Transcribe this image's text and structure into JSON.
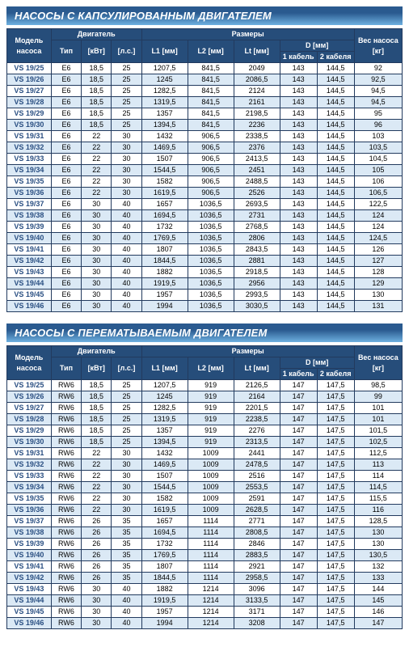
{
  "section1": {
    "title": "НАСОСЫ С КАПСУЛИРОВАННЫМ ДВИГАТЕЛЕМ",
    "headers": {
      "model": "Модель насоса",
      "engine": "Двигатель",
      "dims": "Размеры",
      "weight": "Вес насоса [кг]",
      "tip": "Тип",
      "kbt": "[кВт]",
      "ls": "[л.с.]",
      "l1": "L1 [мм]",
      "l2": "L2 [мм]",
      "lt": "Lt [мм]",
      "d": "D [мм]",
      "d1": "1 кабель",
      "d2": "2 кабеля"
    },
    "rows": [
      [
        "VS 19/25",
        "E6",
        "18,5",
        "25",
        "1207,5",
        "841,5",
        "2049",
        "143",
        "144,5",
        "92"
      ],
      [
        "VS 19/26",
        "E6",
        "18,5",
        "25",
        "1245",
        "841,5",
        "2086,5",
        "143",
        "144,5",
        "92,5"
      ],
      [
        "VS 19/27",
        "E6",
        "18,5",
        "25",
        "1282,5",
        "841,5",
        "2124",
        "143",
        "144,5",
        "94,5"
      ],
      [
        "VS 19/28",
        "E6",
        "18,5",
        "25",
        "1319,5",
        "841,5",
        "2161",
        "143",
        "144,5",
        "94,5"
      ],
      [
        "VS 19/29",
        "E6",
        "18,5",
        "25",
        "1357",
        "841,5",
        "2198,5",
        "143",
        "144,5",
        "95"
      ],
      [
        "VS 19/30",
        "E6",
        "18,5",
        "25",
        "1394,5",
        "841,5",
        "2236",
        "143",
        "144,5",
        "96"
      ],
      [
        "VS 19/31",
        "E6",
        "22",
        "30",
        "1432",
        "906,5",
        "2338,5",
        "143",
        "144,5",
        "103"
      ],
      [
        "VS 19/32",
        "E6",
        "22",
        "30",
        "1469,5",
        "906,5",
        "2376",
        "143",
        "144,5",
        "103,5"
      ],
      [
        "VS 19/33",
        "E6",
        "22",
        "30",
        "1507",
        "906,5",
        "2413,5",
        "143",
        "144,5",
        "104,5"
      ],
      [
        "VS 19/34",
        "E6",
        "22",
        "30",
        "1544,5",
        "906,5",
        "2451",
        "143",
        "144,5",
        "105"
      ],
      [
        "VS 19/35",
        "E6",
        "22",
        "30",
        "1582",
        "906,5",
        "2488,5",
        "143",
        "144,5",
        "106"
      ],
      [
        "VS 19/36",
        "E6",
        "22",
        "30",
        "1619,5",
        "906,5",
        "2526",
        "143",
        "144,5",
        "106,5"
      ],
      [
        "VS 19/37",
        "E6",
        "30",
        "40",
        "1657",
        "1036,5",
        "2693,5",
        "143",
        "144,5",
        "122,5"
      ],
      [
        "VS 19/38",
        "E6",
        "30",
        "40",
        "1694,5",
        "1036,5",
        "2731",
        "143",
        "144,5",
        "124"
      ],
      [
        "VS 19/39",
        "E6",
        "30",
        "40",
        "1732",
        "1036,5",
        "2768,5",
        "143",
        "144,5",
        "124"
      ],
      [
        "VS 19/40",
        "E6",
        "30",
        "40",
        "1769,5",
        "1036,5",
        "2806",
        "143",
        "144,5",
        "124,5"
      ],
      [
        "VS 19/41",
        "E6",
        "30",
        "40",
        "1807",
        "1036,5",
        "2843,5",
        "143",
        "144,5",
        "126"
      ],
      [
        "VS 19/42",
        "E6",
        "30",
        "40",
        "1844,5",
        "1036,5",
        "2881",
        "143",
        "144,5",
        "127"
      ],
      [
        "VS 19/43",
        "E6",
        "30",
        "40",
        "1882",
        "1036,5",
        "2918,5",
        "143",
        "144,5",
        "128"
      ],
      [
        "VS 19/44",
        "E6",
        "30",
        "40",
        "1919,5",
        "1036,5",
        "2956",
        "143",
        "144,5",
        "129"
      ],
      [
        "VS 19/45",
        "E6",
        "30",
        "40",
        "1957",
        "1036,5",
        "2993,5",
        "143",
        "144,5",
        "130"
      ],
      [
        "VS 19/46",
        "E6",
        "30",
        "40",
        "1994",
        "1036,5",
        "3030,5",
        "143",
        "144,5",
        "131"
      ]
    ]
  },
  "section2": {
    "title": "НАСОСЫ С ПЕРЕМАТЫВАЕМЫМ ДВИГАТЕЛЕМ",
    "headers": {
      "model": "Модель насоса",
      "engine": "Двигатель",
      "dims": "Размеры",
      "weight": "Вес насоса [кг]",
      "tip": "Тип",
      "kbt": "[кВт]",
      "ls": "[л.с.]",
      "l1": "L1 [мм]",
      "l2": "L2 [мм]",
      "lt": "Lt [мм]",
      "d": "D [мм]",
      "d1": "1 кабель",
      "d2": "2 кабеля"
    },
    "rows": [
      [
        "VS 19/25",
        "RW6",
        "18,5",
        "25",
        "1207,5",
        "919",
        "2126,5",
        "147",
        "147,5",
        "98,5"
      ],
      [
        "VS 19/26",
        "RW6",
        "18,5",
        "25",
        "1245",
        "919",
        "2164",
        "147",
        "147,5",
        "99"
      ],
      [
        "VS 19/27",
        "RW6",
        "18,5",
        "25",
        "1282,5",
        "919",
        "2201,5",
        "147",
        "147,5",
        "101"
      ],
      [
        "VS 19/28",
        "RW6",
        "18,5",
        "25",
        "1319,5",
        "919",
        "2238,5",
        "147",
        "147,5",
        "101"
      ],
      [
        "VS 19/29",
        "RW6",
        "18,5",
        "25",
        "1357",
        "919",
        "2276",
        "147",
        "147,5",
        "101,5"
      ],
      [
        "VS 19/30",
        "RW6",
        "18,5",
        "25",
        "1394,5",
        "919",
        "2313,5",
        "147",
        "147,5",
        "102,5"
      ],
      [
        "VS 19/31",
        "RW6",
        "22",
        "30",
        "1432",
        "1009",
        "2441",
        "147",
        "147,5",
        "112,5"
      ],
      [
        "VS 19/32",
        "RW6",
        "22",
        "30",
        "1469,5",
        "1009",
        "2478,5",
        "147",
        "147,5",
        "113"
      ],
      [
        "VS 19/33",
        "RW6",
        "22",
        "30",
        "1507",
        "1009",
        "2516",
        "147",
        "147,5",
        "114"
      ],
      [
        "VS 19/34",
        "RW6",
        "22",
        "30",
        "1544,5",
        "1009",
        "2553,5",
        "147",
        "147,5",
        "114,5"
      ],
      [
        "VS 19/35",
        "RW6",
        "22",
        "30",
        "1582",
        "1009",
        "2591",
        "147",
        "147,5",
        "115,5"
      ],
      [
        "VS 19/36",
        "RW6",
        "22",
        "30",
        "1619,5",
        "1009",
        "2628,5",
        "147",
        "147,5",
        "116"
      ],
      [
        "VS 19/37",
        "RW6",
        "26",
        "35",
        "1657",
        "1114",
        "2771",
        "147",
        "147,5",
        "128,5"
      ],
      [
        "VS 19/38",
        "RW6",
        "26",
        "35",
        "1694,5",
        "1114",
        "2808,5",
        "147",
        "147,5",
        "130"
      ],
      [
        "VS 19/39",
        "RW6",
        "26",
        "35",
        "1732",
        "1114",
        "2846",
        "147",
        "147,5",
        "130"
      ],
      [
        "VS 19/40",
        "RW6",
        "26",
        "35",
        "1769,5",
        "1114",
        "2883,5",
        "147",
        "147,5",
        "130,5"
      ],
      [
        "VS 19/41",
        "RW6",
        "26",
        "35",
        "1807",
        "1114",
        "2921",
        "147",
        "147,5",
        "132"
      ],
      [
        "VS 19/42",
        "RW6",
        "26",
        "35",
        "1844,5",
        "1114",
        "2958,5",
        "147",
        "147,5",
        "133"
      ],
      [
        "VS 19/43",
        "RW6",
        "30",
        "40",
        "1882",
        "1214",
        "3096",
        "147",
        "147,5",
        "144"
      ],
      [
        "VS 19/44",
        "RW6",
        "30",
        "40",
        "1919,5",
        "1214",
        "3133,5",
        "147",
        "147,5",
        "145"
      ],
      [
        "VS 19/45",
        "RW6",
        "30",
        "40",
        "1957",
        "1214",
        "3171",
        "147",
        "147,5",
        "146"
      ],
      [
        "VS 19/46",
        "RW6",
        "30",
        "40",
        "1994",
        "1214",
        "3208",
        "147",
        "147,5",
        "147"
      ]
    ]
  }
}
